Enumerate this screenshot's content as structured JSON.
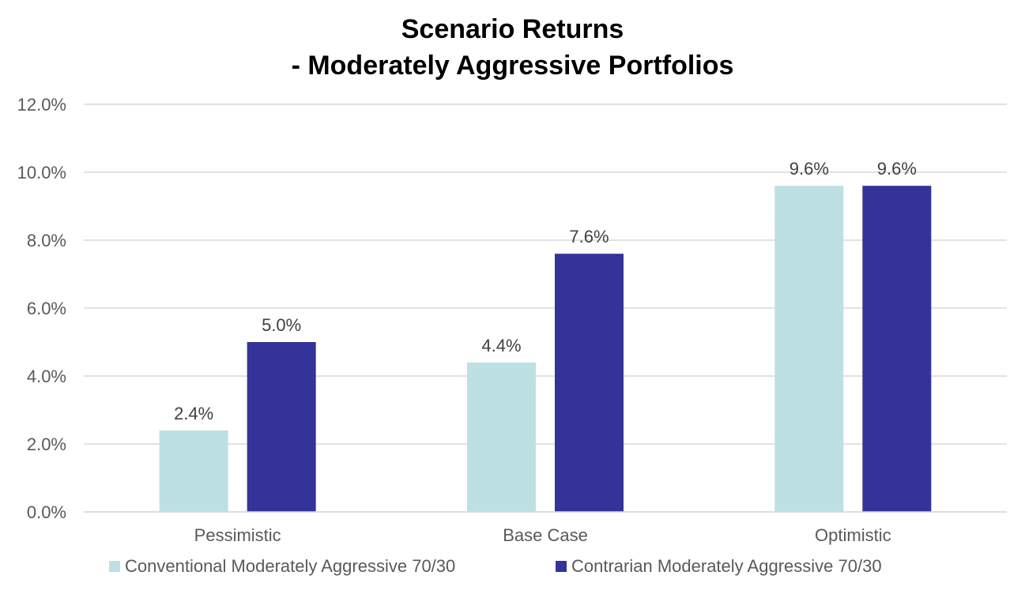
{
  "chart_data": {
    "type": "bar",
    "title": [
      "Scenario Returns",
      "- Moderately Aggressive Portfolios"
    ],
    "categories": [
      "Pessimistic",
      "Base Case",
      "Optimistic"
    ],
    "series": [
      {
        "name": "Conventional Moderately Aggressive 70/30",
        "values": [
          2.4,
          4.4,
          9.6
        ],
        "color": "#bde0e3"
      },
      {
        "name": "Contrarian Moderately Aggressive 70/30",
        "values": [
          5.0,
          7.6,
          9.6
        ],
        "color": "#343399"
      }
    ],
    "data_labels": [
      [
        "2.4%",
        "4.4%",
        "9.6%"
      ],
      [
        "5.0%",
        "7.6%",
        "9.6%"
      ]
    ],
    "ylim": [
      0,
      12
    ],
    "yticks": [
      0,
      2,
      4,
      6,
      8,
      10,
      12
    ],
    "ytick_labels": [
      "0.0%",
      "2.0%",
      "4.0%",
      "6.0%",
      "8.0%",
      "10.0%",
      "12.0%"
    ],
    "xlabel": "",
    "ylabel": "",
    "grid": true,
    "legend_position": "bottom"
  }
}
